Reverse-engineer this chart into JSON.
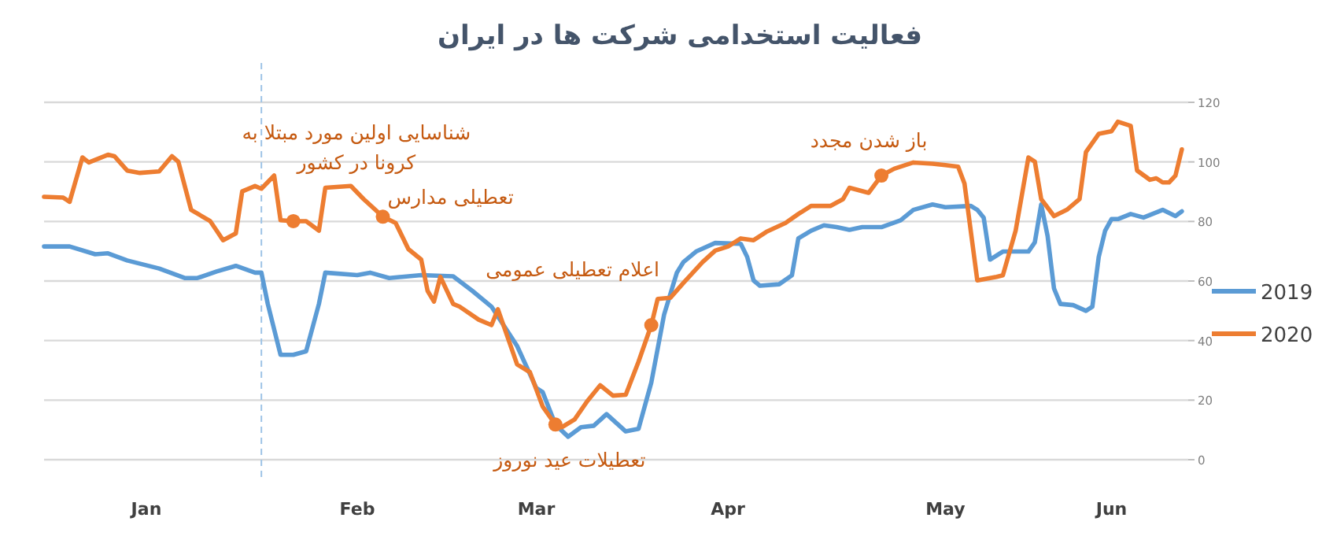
{
  "chart_data": {
    "type": "line",
    "title": "فعالیت استخدامی شرکت ها در ایران",
    "xlim": [
      "2020-01-01",
      "2020-06-28"
    ],
    "ylim": [
      0,
      120
    ],
    "yticks": [
      0,
      20,
      40,
      60,
      80,
      100,
      120
    ],
    "xticks": [
      {
        "value": "2020-01-17",
        "label": "Jan"
      },
      {
        "value": "2020-02-19",
        "label": "Feb"
      },
      {
        "value": "2020-03-18",
        "label": "Mar"
      },
      {
        "value": "2020-04-17",
        "label": "Apr"
      },
      {
        "value": "2020-05-21",
        "label": "May"
      },
      {
        "value": "2020-06-16",
        "label": "Jun"
      }
    ],
    "grid": "y",
    "legend": "right",
    "line_style": "solid",
    "marker": "none",
    "series": [
      {
        "name": "2019",
        "color": "#5b9bd5",
        "x": [
          "2020-01-01",
          "2020-01-05",
          "2020-01-09",
          "2020-01-11",
          "2020-01-14",
          "2020-01-19",
          "2020-01-23",
          "2020-01-25",
          "2020-01-28",
          "2020-01-31",
          "2020-02-03",
          "2020-02-04",
          "2020-02-05",
          "2020-02-07",
          "2020-02-09",
          "2020-02-11",
          "2020-02-13",
          "2020-02-14",
          "2020-02-19",
          "2020-02-21",
          "2020-02-24",
          "2020-02-29",
          "2020-03-05",
          "2020-03-08",
          "2020-03-11",
          "2020-03-15",
          "2020-03-18",
          "2020-03-19",
          "2020-03-21",
          "2020-03-23",
          "2020-03-25",
          "2020-03-27",
          "2020-03-29",
          "2020-04-01",
          "2020-04-03",
          "2020-04-05",
          "2020-04-07",
          "2020-04-09",
          "2020-04-10",
          "2020-04-12",
          "2020-04-15",
          "2020-04-19",
          "2020-04-20",
          "2020-04-21",
          "2020-04-22",
          "2020-04-25",
          "2020-04-27",
          "2020-04-28",
          "2020-04-30",
          "2020-05-02",
          "2020-05-04",
          "2020-05-06",
          "2020-05-08",
          "2020-05-11",
          "2020-05-14",
          "2020-05-16",
          "2020-05-19",
          "2020-05-21",
          "2020-05-25",
          "2020-05-26",
          "2020-05-27",
          "2020-05-28",
          "2020-05-30",
          "2020-06-03",
          "2020-06-04",
          "2020-06-05",
          "2020-06-06",
          "2020-06-07",
          "2020-06-08",
          "2020-06-10",
          "2020-06-12",
          "2020-06-13",
          "2020-06-14",
          "2020-06-15",
          "2020-06-16",
          "2020-06-17",
          "2020-06-19",
          "2020-06-21",
          "2020-06-24",
          "2020-06-26",
          "2020-06-27"
        ],
        "values": [
          71.6,
          71.6,
          69,
          69.3,
          66.9,
          64.2,
          61,
          61,
          63.2,
          65.1,
          62.8,
          62.8,
          52.3,
          35.2,
          35.2,
          36.4,
          52.3,
          62.8,
          62,
          62.8,
          61,
          62,
          61.6,
          56.7,
          51.4,
          38.2,
          24.1,
          22.7,
          11.8,
          7.7,
          10.9,
          11.4,
          15.3,
          9.5,
          10.4,
          25.9,
          48.7,
          62.8,
          66.3,
          69.9,
          72.8,
          72.5,
          68.1,
          60.2,
          58.4,
          58.9,
          61.9,
          74.3,
          76.9,
          78.7,
          78.1,
          77.2,
          78.1,
          78.1,
          80.4,
          83.9,
          85.7,
          84.8,
          85.2,
          83.9,
          81.3,
          67.2,
          69.9,
          69.9,
          73,
          85.7,
          75.1,
          57.5,
          52.3,
          51.9,
          50,
          51.4,
          68.1,
          76.9,
          80.8,
          80.8,
          82.5,
          81.3,
          83.9,
          81.8,
          83.4
        ]
      },
      {
        "name": "2020",
        "color": "#ed7d31",
        "x": [
          "2020-01-01",
          "2020-01-04",
          "2020-01-05",
          "2020-01-07",
          "2020-01-08",
          "2020-01-11",
          "2020-01-12",
          "2020-01-14",
          "2020-01-16",
          "2020-01-19",
          "2020-01-21",
          "2020-01-22",
          "2020-01-24",
          "2020-01-27",
          "2020-01-28",
          "2020-01-29",
          "2020-01-31",
          "2020-02-01",
          "2020-02-03",
          "2020-02-04",
          "2020-02-06",
          "2020-02-07",
          "2020-02-09",
          "2020-02-11",
          "2020-02-13",
          "2020-02-14",
          "2020-02-18",
          "2020-02-20",
          "2020-02-23",
          "2020-02-25",
          "2020-02-27",
          "2020-02-29",
          "2020-03-01",
          "2020-03-02",
          "2020-03-03",
          "2020-03-05",
          "2020-03-06",
          "2020-03-09",
          "2020-03-11",
          "2020-03-12",
          "2020-03-15",
          "2020-03-17",
          "2020-03-19",
          "2020-03-21",
          "2020-03-22",
          "2020-03-24",
          "2020-03-26",
          "2020-03-28",
          "2020-03-30",
          "2020-04-01",
          "2020-04-03",
          "2020-04-05",
          "2020-04-06",
          "2020-04-08",
          "2020-04-10",
          "2020-04-13",
          "2020-04-15",
          "2020-04-17",
          "2020-04-19",
          "2020-04-21",
          "2020-04-23",
          "2020-04-26",
          "2020-04-28",
          "2020-04-30",
          "2020-05-03",
          "2020-05-05",
          "2020-05-06",
          "2020-05-09",
          "2020-05-11",
          "2020-05-13",
          "2020-05-16",
          "2020-05-19",
          "2020-05-21",
          "2020-05-23",
          "2020-05-24",
          "2020-05-26",
          "2020-05-29",
          "2020-05-30",
          "2020-06-01",
          "2020-06-03",
          "2020-06-04",
          "2020-06-05",
          "2020-06-07",
          "2020-06-09",
          "2020-06-11",
          "2020-06-12",
          "2020-06-14",
          "2020-06-16",
          "2020-06-17",
          "2020-06-19",
          "2020-06-20",
          "2020-06-22",
          "2020-06-23",
          "2020-06-24",
          "2020-06-25",
          "2020-06-26",
          "2020-06-27"
        ],
        "values": [
          88.3,
          88,
          86.6,
          101.5,
          99.8,
          102.4,
          101.9,
          97.1,
          96.3,
          96.8,
          101.9,
          100.1,
          83.9,
          80.1,
          76.9,
          73.7,
          76,
          90.1,
          91.9,
          91,
          95.4,
          80.4,
          80.1,
          80.1,
          76.9,
          91.3,
          91.9,
          87.5,
          81.6,
          79.5,
          70.7,
          67.2,
          56.7,
          53.1,
          61.4,
          52.3,
          51.4,
          47,
          45.2,
          50.5,
          32,
          29.4,
          17.9,
          11.8,
          10.9,
          13.5,
          19.7,
          25,
          21.5,
          21.8,
          32.9,
          45.2,
          54,
          54.4,
          59.3,
          66.3,
          70.2,
          71.6,
          74.3,
          73.7,
          76.5,
          79.5,
          82.5,
          85.2,
          85.2,
          87.5,
          91.3,
          89.6,
          95.4,
          97.7,
          99.8,
          99.4,
          98.9,
          98.4,
          92.7,
          60.2,
          61.4,
          61.9,
          76.9,
          101.5,
          100.1,
          87.5,
          81.8,
          83.9,
          87.5,
          103.3,
          109.4,
          110.3,
          113.5,
          112.1,
          97.1,
          94,
          94.5,
          93.1,
          93.1,
          95.4,
          104.2
        ]
      }
    ],
    "ref_lines": [
      {
        "axis": "x",
        "value": "2020-02-04",
        "color": "#9dc3e6",
        "line_style": "dashed"
      }
    ],
    "annotations": [
      {
        "text": "شناسایی اولین مورد مبتلا به\nکرونا در کشور",
        "x": "2020-02-09",
        "y": 80.1
      },
      {
        "text": "تعطیلی مدارس",
        "x": "2020-02-23",
        "y": 81.6
      },
      {
        "text": "اعلام تعطیلی عمومی",
        "x": "2020-04-05",
        "y": 45.2
      },
      {
        "text": "تعطیلات عید نوروز",
        "x": "2020-03-21",
        "y": 11.8
      },
      {
        "text": "باز شدن مجدد",
        "x": "2020-05-11",
        "y": 95.4
      }
    ]
  }
}
